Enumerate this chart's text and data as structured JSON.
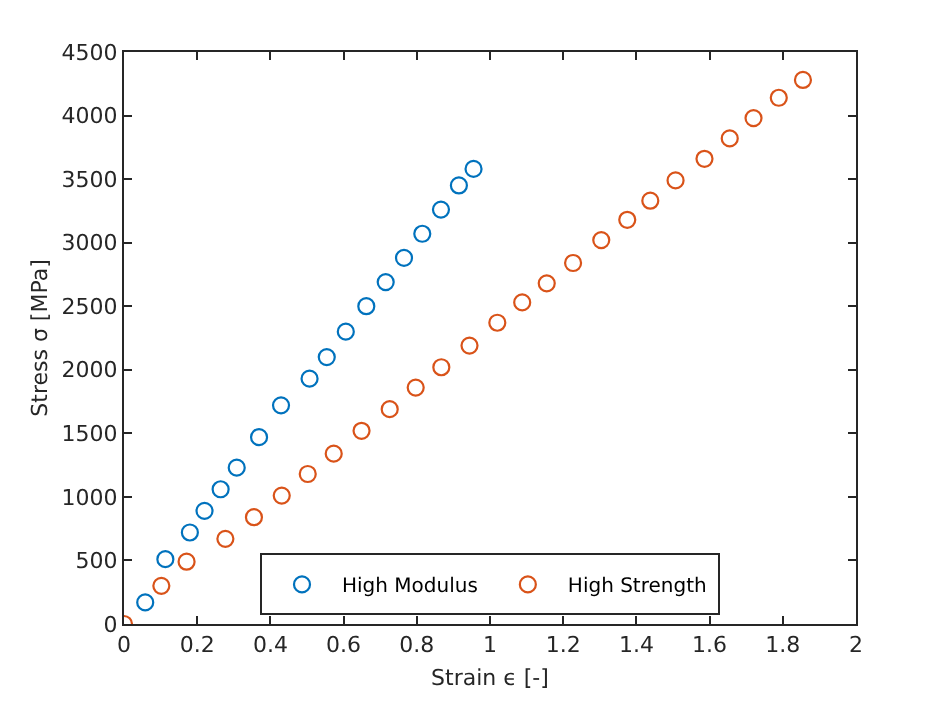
{
  "chart_data": {
    "type": "scatter",
    "xlabel": "Strain ϵ [-]",
    "ylabel": "Stress σ [MPa]",
    "xlim": [
      0,
      2
    ],
    "xticks": [
      0,
      0.2,
      0.4,
      0.6,
      0.8,
      1,
      1.2,
      1.4,
      1.6,
      1.8,
      2
    ],
    "ylim": [
      0,
      4500
    ],
    "yticks": [
      0,
      500,
      1000,
      1500,
      2000,
      2500,
      3000,
      3500,
      4000,
      4500
    ],
    "marker": "circle",
    "legend": "bottom",
    "series": [
      {
        "name": "High Modulus",
        "color": "#0072bd",
        "x": [
          0.058,
          0.113,
          0.18,
          0.22,
          0.264,
          0.308,
          0.369,
          0.429,
          0.507,
          0.554,
          0.606,
          0.662,
          0.715,
          0.765,
          0.815,
          0.866,
          0.915,
          0.955
        ],
        "values": [
          170,
          510,
          720,
          890,
          1060,
          1230,
          1470,
          1720,
          1930,
          2100,
          2300,
          2500,
          2690,
          2880,
          3070,
          3260,
          3450,
          3580
        ]
      },
      {
        "name": "High Strength",
        "color": "#d95319",
        "x": [
          0,
          0.102,
          0.171,
          0.277,
          0.355,
          0.431,
          0.502,
          0.573,
          0.649,
          0.726,
          0.797,
          0.867,
          0.944,
          1.02,
          1.088,
          1.155,
          1.227,
          1.304,
          1.375,
          1.438,
          1.507,
          1.586,
          1.655,
          1.72,
          1.789,
          1.855
        ],
        "values": [
          0,
          300,
          490,
          670,
          840,
          1010,
          1180,
          1340,
          1520,
          1690,
          1860,
          2020,
          2190,
          2370,
          2530,
          2680,
          2840,
          3020,
          3180,
          3330,
          3490,
          3660,
          3820,
          3980,
          4140,
          4280
        ]
      }
    ]
  }
}
